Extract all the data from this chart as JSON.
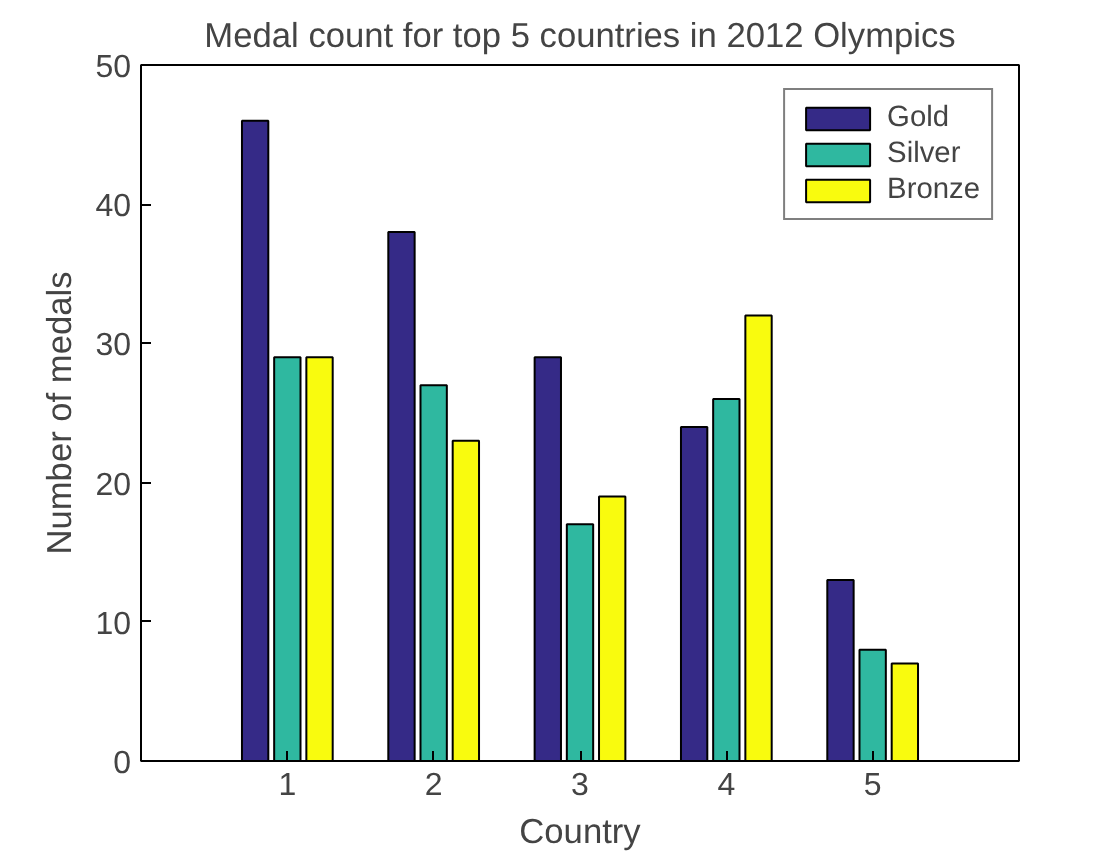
{
  "chart_data": {
    "type": "bar",
    "title": "Medal count for top 5 countries in 2012 Olympics",
    "xlabel": "Country",
    "ylabel": "Number of medals",
    "x": [
      1,
      2,
      3,
      4,
      5
    ],
    "xlim": [
      0,
      6
    ],
    "xticks": [
      1,
      2,
      3,
      4,
      5
    ],
    "ylim": [
      0,
      50
    ],
    "yticks": [
      0,
      10,
      20,
      30,
      40,
      50
    ],
    "series": [
      {
        "name": "Gold",
        "color": "#352a87",
        "values": [
          46,
          38,
          29,
          24,
          13
        ]
      },
      {
        "name": "Silver",
        "color": "#2fb8a0",
        "values": [
          29,
          27,
          17,
          26,
          8
        ]
      },
      {
        "name": "Bronze",
        "color": "#f9fb0e",
        "values": [
          29,
          23,
          19,
          32,
          7
        ]
      }
    ],
    "legend": "top right",
    "grid": false
  }
}
